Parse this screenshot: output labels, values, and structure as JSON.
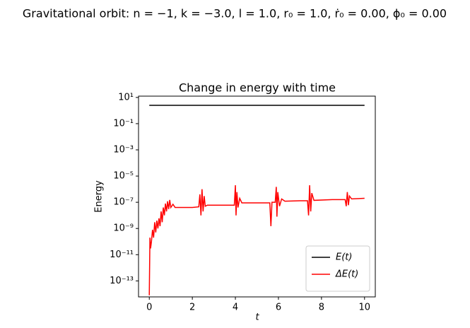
{
  "chart_data": {
    "type": "line",
    "suptitle": "Gravitational orbit:   n = −1,  k = −3.0,  l = 1.0,  r₀ = 1.0,  ṙ₀ = 0.00,  ϕ₀ = 0.00",
    "title": "Change in energy with time",
    "xlabel": "t",
    "ylabel": "Energy",
    "xlim": [
      -0.5,
      10.5
    ],
    "xticks": [
      0,
      2,
      4,
      6,
      8,
      10
    ],
    "ylim": [
      6e-15,
      12.6
    ],
    "yscale": "log",
    "yticks": [
      {
        "value": 10,
        "label": "10¹"
      },
      {
        "value": 0.1,
        "label": "10⁻¹"
      },
      {
        "value": 0.001,
        "label": "10⁻³"
      },
      {
        "value": 1e-05,
        "label": "10⁻⁵"
      },
      {
        "value": 1e-07,
        "label": "10⁻⁷"
      },
      {
        "value": 1e-09,
        "label": "10⁻⁹"
      },
      {
        "value": 1e-11,
        "label": "10⁻¹¹"
      },
      {
        "value": 1e-13,
        "label": "10⁻¹³"
      }
    ],
    "legend": "lower right",
    "series": [
      {
        "name": "E(t)",
        "color": "#000000",
        "x": [
          0,
          10
        ],
        "values": [
          2.5,
          2.5
        ]
      },
      {
        "name": "ΔE(t)",
        "color": "#ff0000",
        "x": [
          0,
          0.03,
          0.06,
          0.1,
          0.15,
          0.2,
          0.25,
          0.3,
          0.35,
          0.4,
          0.45,
          0.5,
          0.55,
          0.6,
          0.65,
          0.7,
          0.75,
          0.8,
          0.85,
          0.9,
          0.95,
          1.0,
          1.1,
          1.2,
          1.5,
          2.0,
          2.3,
          2.35,
          2.4,
          2.45,
          2.5,
          2.55,
          2.6,
          2.7,
          3.0,
          3.5,
          3.95,
          4.0,
          4.03,
          4.07,
          4.12,
          4.2,
          4.3,
          5.0,
          5.6,
          5.65,
          5.7,
          5.85,
          5.9,
          5.93,
          5.97,
          6.05,
          6.15,
          6.3,
          7.0,
          7.35,
          7.4,
          7.45,
          7.5,
          7.55,
          7.65,
          8.5,
          9.1,
          9.15,
          9.2,
          9.25,
          9.3,
          9.4,
          10
        ],
        "values": [
          8e-15,
          2e-10,
          3e-11,
          1e-10,
          8e-10,
          2e-10,
          3e-09,
          5e-10,
          4e-09,
          1e-09,
          6e-09,
          1.5e-09,
          2e-08,
          3e-09,
          4e-08,
          1e-08,
          8e-08,
          2e-08,
          1.2e-07,
          3e-08,
          1.5e-07,
          4e-08,
          7e-08,
          4e-08,
          4e-08,
          4e-08,
          4.5e-08,
          4e-07,
          1e-08,
          1e-06,
          2e-08,
          3e-07,
          5e-08,
          6e-08,
          6e-08,
          6e-08,
          6e-08,
          2e-06,
          1e-08,
          6e-07,
          4e-08,
          2e-07,
          9e-08,
          9e-08,
          9e-08,
          1.5e-09,
          1e-07,
          1e-07,
          1.5e-06,
          8e-09,
          6e-07,
          5e-08,
          1.8e-07,
          1.2e-07,
          1.3e-07,
          1.3e-07,
          1e-08,
          2e-06,
          2e-08,
          5e-07,
          1.4e-07,
          1.6e-07,
          1.6e-07,
          5e-08,
          6e-07,
          6e-08,
          3e-07,
          1.8e-07,
          2e-07
        ]
      }
    ]
  }
}
